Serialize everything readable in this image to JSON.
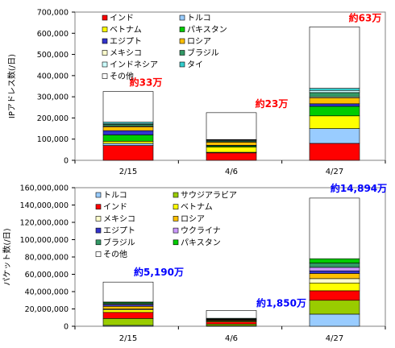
{
  "chart_data": [
    {
      "type": "bar",
      "stacked": true,
      "ylabel": "IPアドレス数(/日)",
      "xlabel": "",
      "categories": [
        "2/15",
        "4/6",
        "4/27"
      ],
      "ylim": [
        0,
        700000
      ],
      "yticks": [
        0,
        100000,
        200000,
        300000,
        400000,
        500000,
        600000,
        700000
      ],
      "ytick_labels": [
        "0",
        "100,000",
        "200,000",
        "300,000",
        "400,000",
        "500,000",
        "600,000",
        "700,000"
      ],
      "legend_position": "top-left, inside plot",
      "legend_columns": 2,
      "series": [
        {
          "name": "インド",
          "color": "#ff0000",
          "values": [
            70000,
            35000,
            80000
          ]
        },
        {
          "name": "トルコ",
          "color": "#99ccff",
          "values": [
            10000,
            3000,
            70000
          ]
        },
        {
          "name": "ベトナム",
          "color": "#ffff00",
          "values": [
            10000,
            25000,
            60000
          ]
        },
        {
          "name": "パキスタン",
          "color": "#00cc00",
          "values": [
            30000,
            5000,
            45000
          ]
        },
        {
          "name": "エジプト",
          "color": "#3333cc",
          "values": [
            20000,
            3000,
            12000
          ]
        },
        {
          "name": "ロシア",
          "color": "#ffc000",
          "values": [
            18000,
            15000,
            28000
          ]
        },
        {
          "name": "メキシコ",
          "color": "#ffffcc",
          "values": [
            4000,
            2000,
            5000
          ]
        },
        {
          "name": "ブラジル",
          "color": "#339966",
          "values": [
            8000,
            5000,
            20000
          ]
        },
        {
          "name": "インドネシア",
          "color": "#ccffff",
          "values": [
            4000,
            3000,
            10000
          ]
        },
        {
          "name": "タイ",
          "color": "#33cccc",
          "values": [
            6000,
            2000,
            10000
          ]
        },
        {
          "name": "その他",
          "color": "#ffffff",
          "values": [
            145000,
            127000,
            290000
          ]
        }
      ],
      "annotations": [
        {
          "category": "2/15",
          "text": "約33万",
          "color": "#ff0000"
        },
        {
          "category": "4/6",
          "text": "約23万",
          "color": "#ff0000"
        },
        {
          "category": "4/27",
          "text": "約63万",
          "color": "#ff0000"
        }
      ]
    },
    {
      "type": "bar",
      "stacked": true,
      "ylabel": "パケット数(/日)",
      "xlabel": "",
      "categories": [
        "2/15",
        "4/6",
        "4/27"
      ],
      "ylim": [
        0,
        160000000
      ],
      "yticks": [
        0,
        20000000,
        40000000,
        60000000,
        80000000,
        100000000,
        120000000,
        140000000,
        160000000
      ],
      "ytick_labels": [
        "0",
        "20,000,000",
        "40,000,000",
        "60,000,000",
        "80,000,000",
        "100,000,000",
        "120,000,000",
        "140,000,000",
        "160,000,000"
      ],
      "legend_position": "top-left, inside plot",
      "legend_columns": 2,
      "series": [
        {
          "name": "トルコ",
          "color": "#99ccff",
          "values": [
            1000000,
            500000,
            14000000
          ]
        },
        {
          "name": "サウジアラビア",
          "color": "#99cc00",
          "values": [
            8000000,
            2000000,
            16000000
          ]
        },
        {
          "name": "インド",
          "color": "#ff0000",
          "values": [
            7000000,
            2500000,
            11000000
          ]
        },
        {
          "name": "ベトナム",
          "color": "#ffff00",
          "values": [
            3000000,
            1000000,
            9000000
          ]
        },
        {
          "name": "メキシコ",
          "color": "#ffffcc",
          "values": [
            1000000,
            500000,
            5000000
          ]
        },
        {
          "name": "ロシア",
          "color": "#ffc000",
          "values": [
            3000000,
            800000,
            6000000
          ]
        },
        {
          "name": "エジプト",
          "color": "#3333cc",
          "values": [
            1500000,
            300000,
            3000000
          ]
        },
        {
          "name": "ウクライナ",
          "color": "#cc99ff",
          "values": [
            1000000,
            500000,
            4000000
          ]
        },
        {
          "name": "ブラジル",
          "color": "#339966",
          "values": [
            1500000,
            800000,
            5000000
          ]
        },
        {
          "name": "パキスタン",
          "color": "#00cc00",
          "values": [
            1000000,
            300000,
            5000000
          ]
        },
        {
          "name": "その他",
          "color": "#ffffff",
          "values": [
            23000000,
            9000000,
            70000000
          ]
        }
      ],
      "annotations": [
        {
          "category": "2/15",
          "text": "約5,190万",
          "color": "#0000ff"
        },
        {
          "category": "4/6",
          "text": "約1,850万",
          "color": "#0000ff"
        },
        {
          "category": "4/27",
          "text": "約14,894万",
          "color": "#0000ff"
        }
      ]
    }
  ]
}
